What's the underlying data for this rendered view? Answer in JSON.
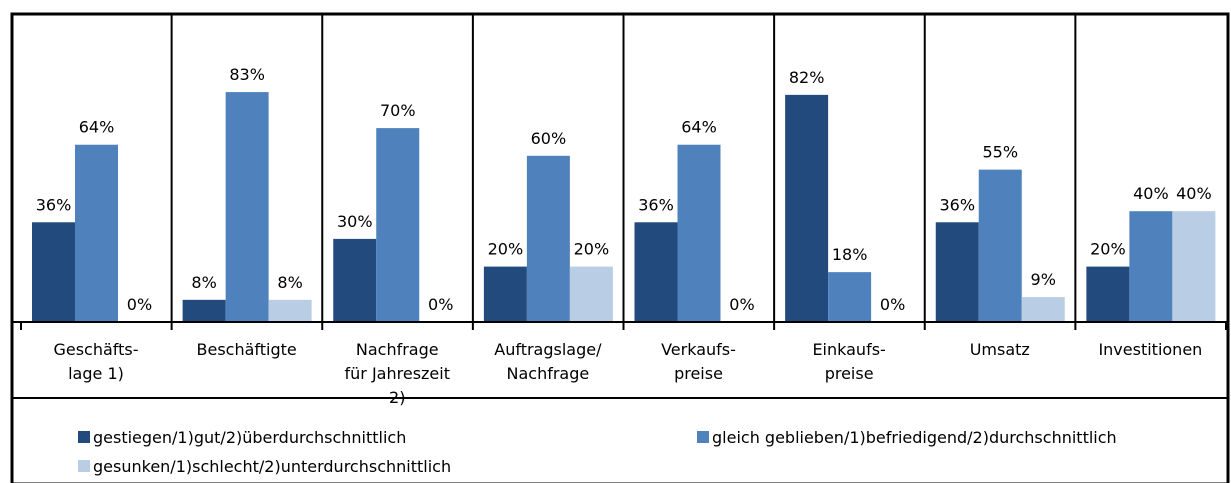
{
  "chart_data": {
    "type": "bar",
    "categories": [
      "Geschäfts-\nlage 1)",
      "Beschäftigte",
      "Nachfrage\nfür Jahreszeit\n2)",
      "Auftragslage/\nNachfrage",
      "Verkaufs-\npreise",
      "Einkaufs-\npreise",
      "Umsatz",
      "Investitionen"
    ],
    "series": [
      {
        "name": "gestiegen/1)gut/2)überdurchschnittlich",
        "color": "#234a7d",
        "values": [
          36,
          8,
          30,
          20,
          36,
          82,
          36,
          20
        ],
        "value_labels": [
          "36%",
          "8%",
          "30%",
          "20%",
          "36%",
          "82%",
          "36%",
          "20%"
        ]
      },
      {
        "name": "gleich geblieben/1)befriedigend/2)durchschnittlich",
        "color": "#4f81bd",
        "values": [
          64,
          83,
          70,
          60,
          64,
          18,
          55,
          40
        ],
        "value_labels": [
          "64%",
          "83%",
          "70%",
          "60%",
          "64%",
          "18%",
          "55%",
          "40%"
        ]
      },
      {
        "name": "gesunken/1)schlecht/2)unterdurchschnittlich",
        "color": "#b9cde5",
        "values": [
          0,
          8,
          0,
          20,
          0,
          0,
          9,
          40
        ],
        "value_labels": [
          "0%",
          "8%",
          "0%",
          "20%",
          "0%",
          "0%",
          "9%",
          "40%"
        ]
      }
    ],
    "ylim": [
      0,
      100
    ]
  }
}
